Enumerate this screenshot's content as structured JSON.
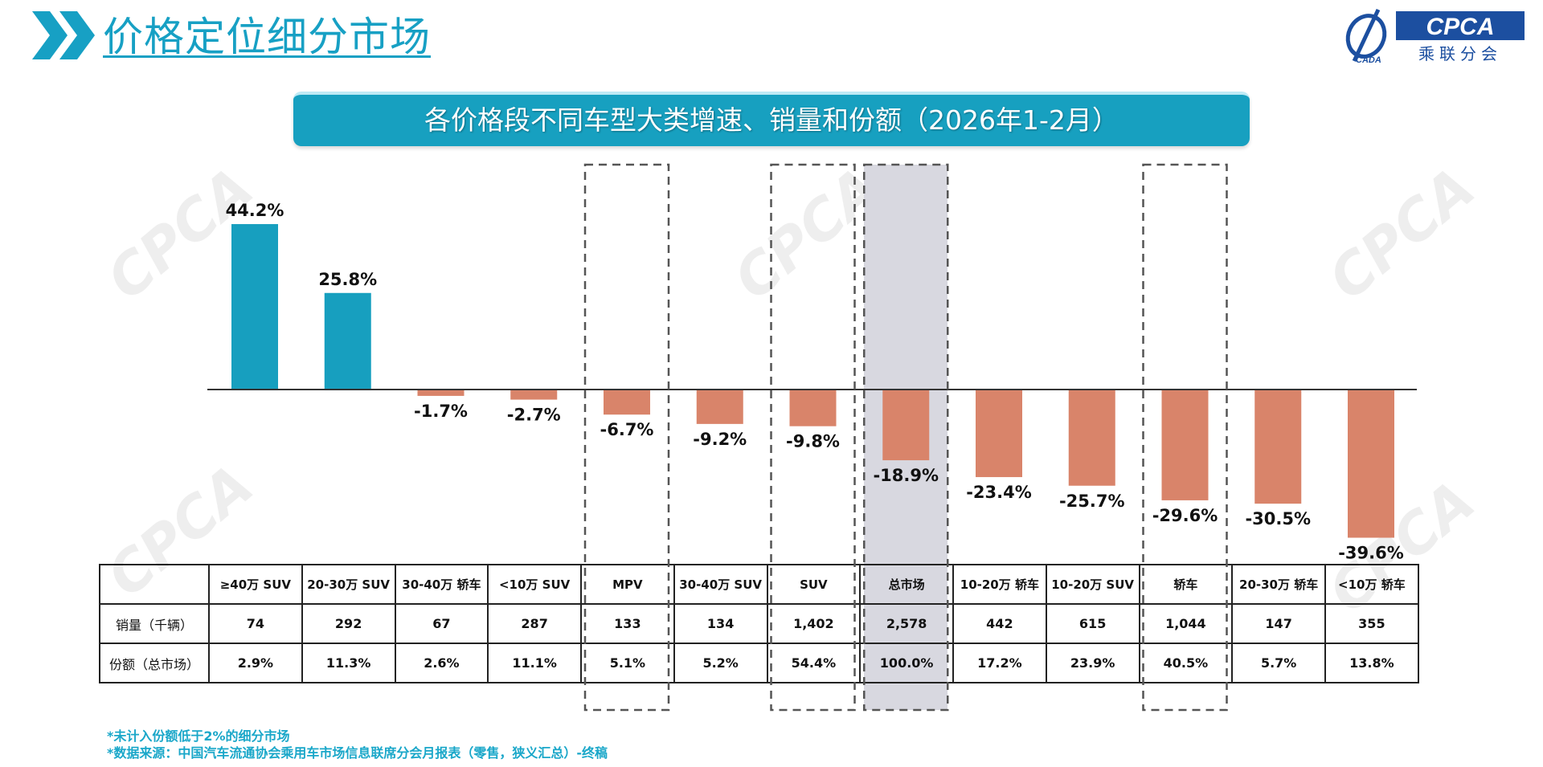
{
  "header": {
    "title": "价格定位细分市场",
    "logo_text": "CPCA",
    "logo_subtext": "乘联分会",
    "logo_small": "CADA"
  },
  "watermark": "CPCA 乘联分会",
  "colors": {
    "positive": "#179fbf",
    "negative": "#d9846a",
    "accent": "#17a0c0",
    "highlight": "#d8d8e0"
  },
  "chart_data": {
    "type": "bar",
    "title": "各价格段不同车型大类增速、销量和份额（2026年1-2月）",
    "categories": [
      "≥40万 SUV",
      "20-30万 SUV",
      "30-40万 轿车",
      "<10万 SUV",
      "MPV",
      "30-40万 SUV",
      "SUV",
      "总市场",
      "10-20万 轿车",
      "10-20万 SUV",
      "轿车",
      "20-30万 轿车",
      "<10万 轿车"
    ],
    "values": [
      44.2,
      25.8,
      -1.7,
      -2.7,
      -6.7,
      -9.2,
      -9.8,
      -18.9,
      -23.4,
      -25.7,
      -29.6,
      -30.5,
      -39.6
    ],
    "value_labels": [
      "44.2%",
      "25.8%",
      "-1.7%",
      "-2.7%",
      "-6.7%",
      "-9.2%",
      "-9.8%",
      "-18.9%",
      "-23.4%",
      "-25.7%",
      "-29.6%",
      "-30.5%",
      "-39.6%"
    ],
    "unit": "%",
    "highlighted": [
      "MPV",
      "SUV",
      "总市场",
      "轿车"
    ],
    "shaded": "总市场",
    "grid": false
  },
  "table": {
    "rows": [
      {
        "label": "销量（千辆）",
        "values": [
          "74",
          "292",
          "67",
          "287",
          "133",
          "134",
          "1,402",
          "2,578",
          "442",
          "615",
          "1,044",
          "147",
          "355"
        ]
      },
      {
        "label": "份额（总市场）",
        "values": [
          "2.9%",
          "11.3%",
          "2.6%",
          "11.1%",
          "5.1%",
          "5.2%",
          "54.4%",
          "100.0%",
          "17.2%",
          "23.9%",
          "40.5%",
          "5.7%",
          "13.8%"
        ]
      }
    ]
  },
  "notes": [
    "*未计入份额低于2%的细分市场",
    "*数据来源：中国汽车流通协会乘用车市场信息联席分会月报表（零售，狭义汇总）-终稿"
  ]
}
